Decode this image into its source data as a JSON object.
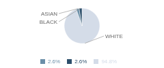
{
  "chart_data": {
    "type": "pie",
    "categories": [
      "WHITE",
      "ASIAN",
      "BLACK"
    ],
    "values": [
      94.8,
      2.6,
      2.6
    ],
    "value_labels": [
      "94.8%",
      "2.6%",
      "2.6%"
    ],
    "colors": [
      "#d4dce8",
      "#6b8fa8",
      "#2d4f6b"
    ],
    "legend": "bottom"
  }
}
